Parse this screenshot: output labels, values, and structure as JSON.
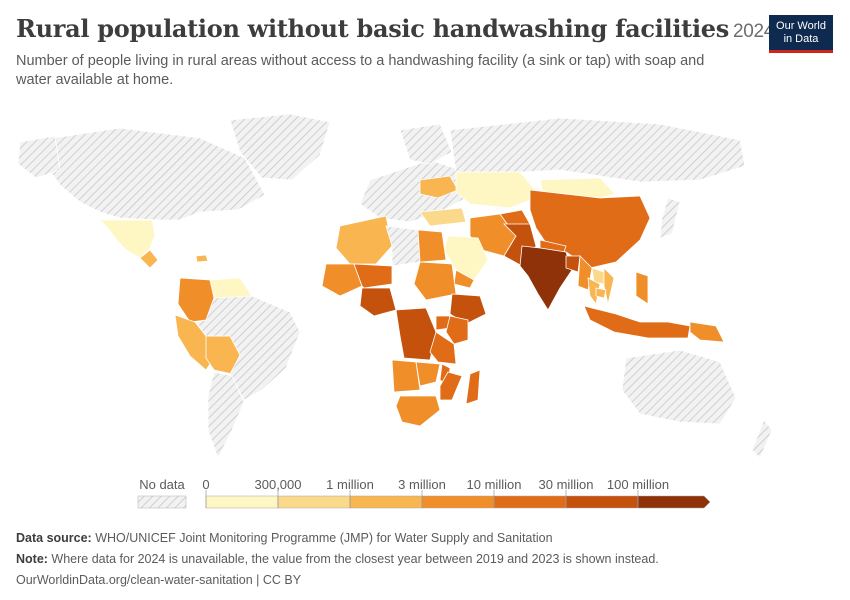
{
  "header": {
    "title": "Rural population without basic handwashing facilities",
    "year": "2024",
    "subtitle": "Number of people living in rural areas without access to a handwashing facility (a sink or tap) with soap and water available at home."
  },
  "logo": {
    "line1": "Our World",
    "line2": "in Data"
  },
  "legend": {
    "no_data_label": "No data",
    "thresholds": [
      "0",
      "300,000",
      "1 million",
      "3 million",
      "10 million",
      "30 million",
      "100 million"
    ],
    "colors": [
      "#fef6c3",
      "#fbd98a",
      "#f8b550",
      "#f08e2a",
      "#e06c17",
      "#c4510c",
      "#8f3109"
    ]
  },
  "colors": {
    "no_data_fill": "#f0f0f0",
    "no_data_hatch": "#cfcfcf",
    "border": "#ffffff"
  },
  "chart_data": {
    "type": "choropleth",
    "value_bins": [
      "0–300,000",
      "300,000–1 million",
      "1–3 million",
      "3–10 million",
      "10–30 million",
      "30–100 million",
      "100 million+"
    ],
    "regions": [
      {
        "name": "India",
        "bin": 6
      },
      {
        "name": "Nepal",
        "bin": 4
      },
      {
        "name": "Bangladesh",
        "bin": 5
      },
      {
        "name": "Pakistan",
        "bin": 5
      },
      {
        "name": "Afghanistan",
        "bin": 4
      },
      {
        "name": "China",
        "bin": 4
      },
      {
        "name": "Myanmar",
        "bin": 3
      },
      {
        "name": "Indonesia",
        "bin": 4
      },
      {
        "name": "Philippines",
        "bin": 3
      },
      {
        "name": "Papua New Guinea",
        "bin": 3
      },
      {
        "name": "Nigeria",
        "bin": 5
      },
      {
        "name": "Ethiopia",
        "bin": 5
      },
      {
        "name": "DR Congo",
        "bin": 5
      },
      {
        "name": "Tanzania",
        "bin": 4
      },
      {
        "name": "Uganda",
        "bin": 4
      },
      {
        "name": "Kenya",
        "bin": 4
      },
      {
        "name": "Mozambique",
        "bin": 4
      },
      {
        "name": "Madagascar",
        "bin": 4
      },
      {
        "name": "South Africa",
        "bin": 3
      },
      {
        "name": "Egypt",
        "bin": 3
      },
      {
        "name": "Sudan",
        "bin": 3
      },
      {
        "name": "Niger",
        "bin": 4
      },
      {
        "name": "Mali",
        "bin": 3
      },
      {
        "name": "Algeria",
        "bin": 2
      },
      {
        "name": "Colombia",
        "bin": 3
      },
      {
        "name": "Peru",
        "bin": 2
      },
      {
        "name": "Bolivia",
        "bin": 2
      },
      {
        "name": "Mexico",
        "bin": 0
      },
      {
        "name": "Guatemala",
        "bin": 2
      },
      {
        "name": "Haiti",
        "bin": 2
      },
      {
        "name": "Kazakhstan",
        "bin": 0
      },
      {
        "name": "Mongolia",
        "bin": 0
      },
      {
        "name": "Ukraine",
        "bin": 2
      },
      {
        "name": "Turkey",
        "bin": 1
      },
      {
        "name": "Iran",
        "bin": 3
      },
      {
        "name": "Saudi Arabia",
        "bin": 0
      },
      {
        "name": "Yemen",
        "bin": 3
      },
      {
        "name": "Vietnam",
        "bin": 2
      },
      {
        "name": "Thailand",
        "bin": 2
      },
      {
        "name": "Cambodia",
        "bin": 2
      },
      {
        "name": "Laos",
        "bin": 1
      },
      {
        "name": "Angola",
        "bin": 3
      },
      {
        "name": "Zambia",
        "bin": 3
      },
      {
        "name": "Malawi",
        "bin": 4
      },
      {
        "name": "Venezuela",
        "bin": 0
      }
    ]
  }
}
